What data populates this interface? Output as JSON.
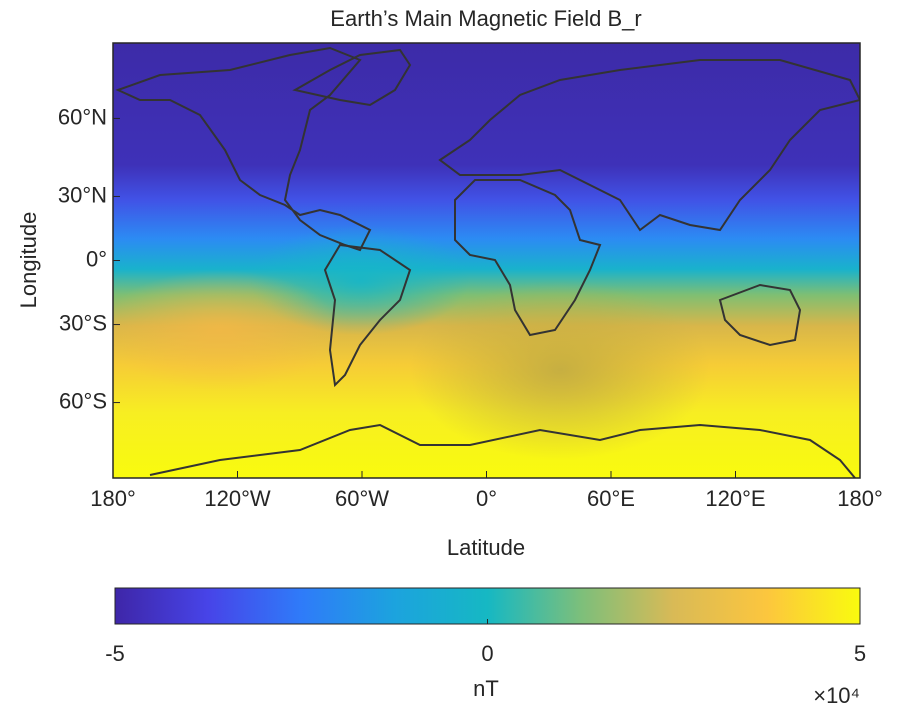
{
  "chart_data": {
    "type": "map",
    "title": "Earth’s Main Magnetic Field B_r",
    "xlabel": "Latitude",
    "ylabel": "Longitude",
    "projection": "miller",
    "xlim": [
      -180,
      180
    ],
    "xticks": [
      {
        "value": -180,
        "label": "180°"
      },
      {
        "value": -120,
        "label": "120°W"
      },
      {
        "value": -60,
        "label": "60°W"
      },
      {
        "value": 0,
        "label": "0°"
      },
      {
        "value": 60,
        "label": "60°E"
      },
      {
        "value": 120,
        "label": "120°E"
      },
      {
        "value": 180,
        "label": "180°"
      }
    ],
    "ylim": [
      -80,
      80
    ],
    "yticks": [
      {
        "value": 60,
        "label": "60°N"
      },
      {
        "value": 30,
        "label": "30°N"
      },
      {
        "value": 0,
        "label": "0°"
      },
      {
        "value": -30,
        "label": "30°S"
      },
      {
        "value": -60,
        "label": "60°S"
      }
    ],
    "colorbar": {
      "label": "nT",
      "multiplier": "×10⁴",
      "clim": [
        -5,
        5
      ],
      "ticks": [
        -5,
        0,
        5
      ],
      "colormap": [
        "#3e26a8",
        "#4744e8",
        "#2f7bf9",
        "#1ca3de",
        "#16b8c3",
        "#7cbf7b",
        "#d9ba56",
        "#fcc63e",
        "#f9fb0e"
      ]
    }
  }
}
